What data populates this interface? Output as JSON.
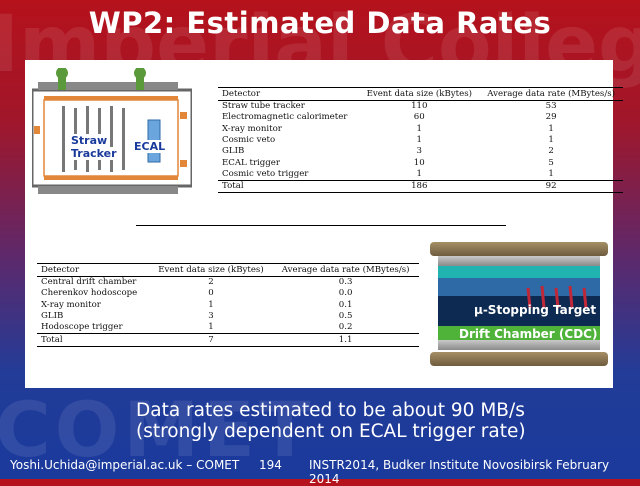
{
  "slide": {
    "title": "WP2: Estimated Data Rates",
    "watermark_top": "Imperial College",
    "watermark_bottom": "COMET",
    "body_line1": "Data rates estimated to be about 90 MB/s",
    "body_line2": "(strongly dependent on ECAL trigger rate)",
    "footer_left": "Yoshi.Uchida@imperial.ac.uk – COMET",
    "footer_page": "194",
    "footer_right": "INSTR2014, Budker Institute Novosibirsk February 2014"
  },
  "detector_figure": {
    "label_straw": "Straw",
    "label_tracker": "Tracker",
    "label_ecal": "ECAL"
  },
  "cdc_figure": {
    "label_target": "μ-Stopping Target",
    "label_cdc": "Drift Chamber (CDC)"
  },
  "table1": {
    "headers": [
      "Detector",
      "Event data size (kBytes)",
      "Average data rate (MBytes/s)"
    ],
    "rows": [
      [
        "Straw tube tracker",
        "110",
        "53"
      ],
      [
        "Electromagnetic calorimeter",
        "60",
        "29"
      ],
      [
        "X-ray monitor",
        "1",
        "1"
      ],
      [
        "Cosmic veto",
        "1",
        "1"
      ],
      [
        "GLIB",
        "3",
        "2"
      ],
      [
        "ECAL trigger",
        "10",
        "5"
      ],
      [
        "Cosmic veto trigger",
        "1",
        "1"
      ]
    ],
    "total": [
      "Total",
      "186",
      "92"
    ]
  },
  "table2": {
    "headers": [
      "Detector",
      "Event data size (kBytes)",
      "Average data rate (MBytes/s)"
    ],
    "rows": [
      [
        "Central drift chamber",
        "2",
        "0.3"
      ],
      [
        "Cherenkov hodoscope",
        "0",
        "0.0"
      ],
      [
        "X-ray monitor",
        "1",
        "0.1"
      ],
      [
        "GLIB",
        "3",
        "0.5"
      ],
      [
        "Hodoscope trigger",
        "1",
        "0.2"
      ]
    ],
    "total": [
      "Total",
      "7",
      "1.1"
    ]
  }
}
